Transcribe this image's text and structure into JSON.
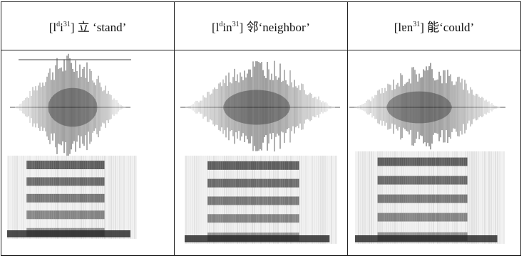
{
  "columns": [
    {
      "open": "[l",
      "sup1": "d",
      "mid": "i",
      "sup2": "31",
      "close": "]",
      "gloss": " 立 ‘stand’"
    },
    {
      "open": "[l",
      "sup1": "d",
      "mid": "in",
      "sup2": "31",
      "close": "]",
      "gloss": " 邻‘neighbor’"
    },
    {
      "open": "[l",
      "sup1": "",
      "mid": "ɐn",
      "sup2": "31",
      "close": "]",
      "gloss": " 能‘could’"
    }
  ]
}
